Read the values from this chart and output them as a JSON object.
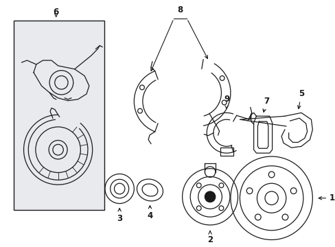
{
  "background_color": "#ffffff",
  "line_color": "#1a1a1a",
  "box_fill": "#e8eaed",
  "fig_width": 4.89,
  "fig_height": 3.6,
  "dpi": 100
}
